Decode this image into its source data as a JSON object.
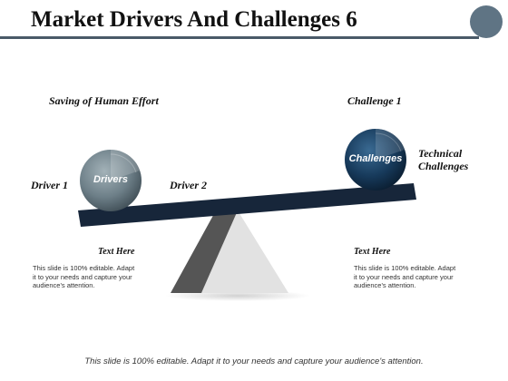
{
  "header": {
    "title": "Market Drivers And Challenges 6"
  },
  "colors": {
    "accent": "#5f7484",
    "plank": "#17263a",
    "navy_ball": "#173a5b",
    "grey_ball": "#6d7f88",
    "stand_dark": "#555555",
    "stand_light": "#e2e2e2"
  },
  "labels": {
    "saving": "Saving of Human Effort",
    "challenge1": "Challenge 1",
    "driver1": "Driver 1",
    "driver2": "Driver 2",
    "technical_line1": "Technical",
    "technical_line2": "Challenges"
  },
  "balls": {
    "left": "Drivers",
    "right": "Challenges"
  },
  "text_blocks": {
    "left": {
      "heading": "Text Here",
      "line1": "This slide is 100% editable. Adapt",
      "line2": "it to your needs and capture your",
      "line3": "audience's attention."
    },
    "right": {
      "heading": "Text Here",
      "line1": "This slide is 100% editable. Adapt",
      "line2": "it to your needs and capture your",
      "line3": "audience's attention."
    }
  },
  "footer": "This slide is 100% editable. Adapt it to your needs and capture your audience's attention."
}
